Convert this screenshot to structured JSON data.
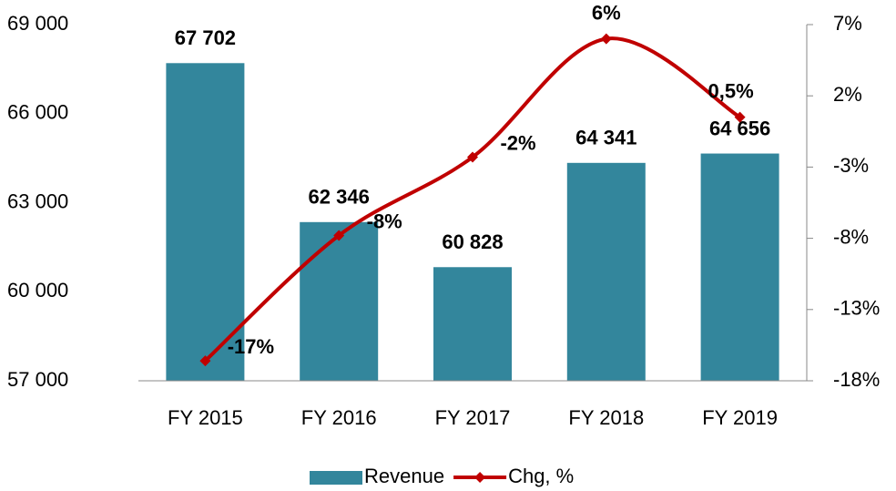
{
  "chart_data": {
    "type": "bar_line",
    "categories": [
      "FY 2015",
      "FY 2016",
      "FY 2017",
      "FY 2018",
      "FY 2019"
    ],
    "series": [
      {
        "name": "Revenue",
        "type": "bar",
        "color": "#33869c",
        "values": [
          67702,
          62346,
          60828,
          64341,
          64656
        ],
        "value_labels": [
          "67 702",
          "62 346",
          "60 828",
          "64 341",
          "64 656"
        ]
      },
      {
        "name": "Chg, %",
        "type": "line",
        "axis": "y2",
        "color": "#c00000",
        "values": [
          -16.6,
          -7.8,
          -2.3,
          6.0,
          0.5
        ],
        "value_labels": [
          "-17%",
          "-8%",
          "-2%",
          "6%",
          "0,5%"
        ]
      }
    ],
    "ylim": [
      57000,
      69000
    ],
    "yticks": [
      {
        "value": 57000,
        "label": "57 000"
      },
      {
        "value": 60000,
        "label": "60 000"
      },
      {
        "value": 63000,
        "label": "63 000"
      },
      {
        "value": 66000,
        "label": "66 000"
      },
      {
        "value": 69000,
        "label": "69 000"
      }
    ],
    "y2lim": [
      -18,
      7
    ],
    "y2ticks": [
      {
        "value": -18,
        "label": "-18%"
      },
      {
        "value": -13,
        "label": "-13%"
      },
      {
        "value": -8,
        "label": "-8%"
      },
      {
        "value": -3,
        "label": "-3%"
      },
      {
        "value": 2,
        "label": "2%"
      },
      {
        "value": 7,
        "label": "7%"
      }
    ],
    "legend": "bottom"
  }
}
